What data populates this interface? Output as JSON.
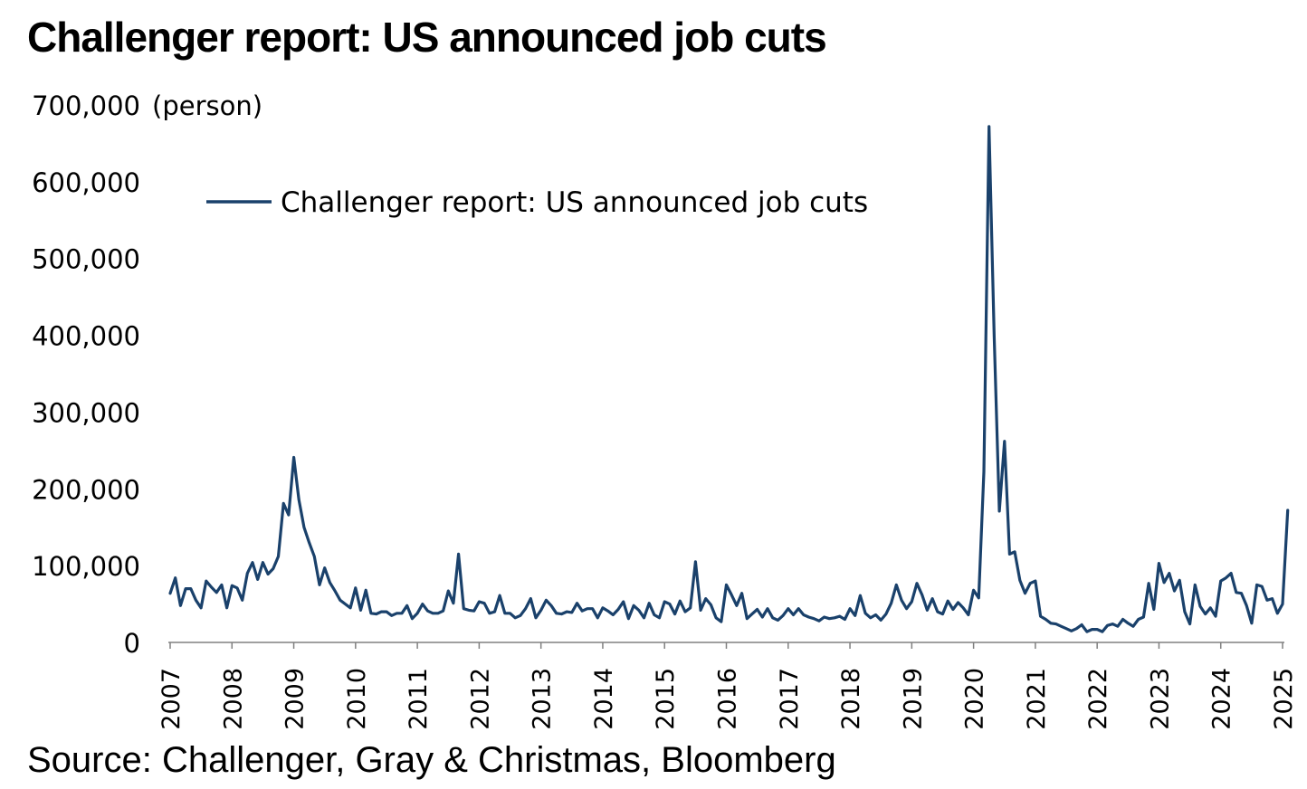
{
  "title": "Challenger report: US announced job cuts",
  "unit_label": "(person)",
  "source": "Source: Challenger, Gray & Christmas, Bloomberg",
  "line_color": "#1a416b",
  "chart_data": {
    "type": "line",
    "title": "Challenger report: US announced job cuts",
    "ylabel": "(person)",
    "ylim": [
      0,
      700000
    ],
    "yticks": [
      0,
      100000,
      200000,
      300000,
      400000,
      500000,
      600000,
      700000
    ],
    "ytick_labels": [
      "0",
      "100,000",
      "200,000",
      "300,000",
      "400,000",
      "500,000",
      "600,000",
      "700,000"
    ],
    "xticks": [
      "2007",
      "2008",
      "2009",
      "2010",
      "2011",
      "2012",
      "2013",
      "2014",
      "2015",
      "2016",
      "2017",
      "2018",
      "2019",
      "2020",
      "2021",
      "2022",
      "2023",
      "2024",
      "2025"
    ],
    "grid": false,
    "legend": "top-left",
    "x_start": "2007-01",
    "frequency": "monthly",
    "series": [
      {
        "name": "Challenger report: US announced job cuts",
        "values": [
          64000,
          84000,
          48000,
          70000,
          70000,
          55000,
          45000,
          80000,
          72000,
          65000,
          75000,
          45000,
          74000,
          71000,
          55000,
          90000,
          104000,
          82000,
          104000,
          89000,
          96000,
          112000,
          181000,
          166000,
          241000,
          186000,
          150000,
          130000,
          112000,
          75000,
          97000,
          78000,
          67000,
          55000,
          50000,
          45000,
          71000,
          42000,
          68000,
          38000,
          37000,
          40000,
          40000,
          35000,
          38000,
          38000,
          48000,
          31000,
          38000,
          50000,
          41000,
          38000,
          38000,
          41000,
          67000,
          51000,
          115000,
          44000,
          42000,
          41000,
          53000,
          51000,
          38000,
          40000,
          61000,
          38000,
          38000,
          32000,
          35000,
          44000,
          57000,
          32000,
          42000,
          55000,
          48000,
          38000,
          37000,
          40000,
          39000,
          51000,
          41000,
          44000,
          44000,
          32000,
          45000,
          41000,
          36000,
          43000,
          53000,
          31000,
          48000,
          42000,
          32000,
          51000,
          36000,
          32000,
          53000,
          50000,
          37000,
          54000,
          40000,
          45000,
          105000,
          42000,
          57000,
          49000,
          32000,
          27000,
          75000,
          62000,
          48000,
          64000,
          31000,
          37000,
          43000,
          33000,
          44000,
          32000,
          29000,
          35000,
          44000,
          36000,
          44000,
          36000,
          33000,
          31000,
          28000,
          33000,
          31000,
          32000,
          34000,
          30000,
          44000,
          35000,
          61000,
          38000,
          32000,
          36000,
          29000,
          37000,
          51000,
          75000,
          55000,
          44000,
          53000,
          77000,
          62000,
          42000,
          57000,
          40000,
          37000,
          54000,
          43000,
          52000,
          45000,
          36000,
          68000,
          58000,
          222000,
          672000,
          398000,
          171000,
          262000,
          115000,
          118000,
          81000,
          64000,
          77000,
          80000,
          34000,
          30000,
          25000,
          24000,
          21000,
          18000,
          15000,
          18000,
          23000,
          14000,
          17000,
          17000,
          14000,
          22000,
          24000,
          21000,
          30000,
          25000,
          21000,
          30000,
          33000,
          77000,
          43000,
          103000,
          78000,
          90000,
          67000,
          81000,
          40000,
          24000,
          75000,
          47000,
          37000,
          45000,
          34000,
          80000,
          84000,
          90000,
          65000,
          64000,
          48000,
          25000,
          75000,
          73000,
          55000,
          57000,
          38000,
          50000,
          172000
        ]
      }
    ]
  }
}
